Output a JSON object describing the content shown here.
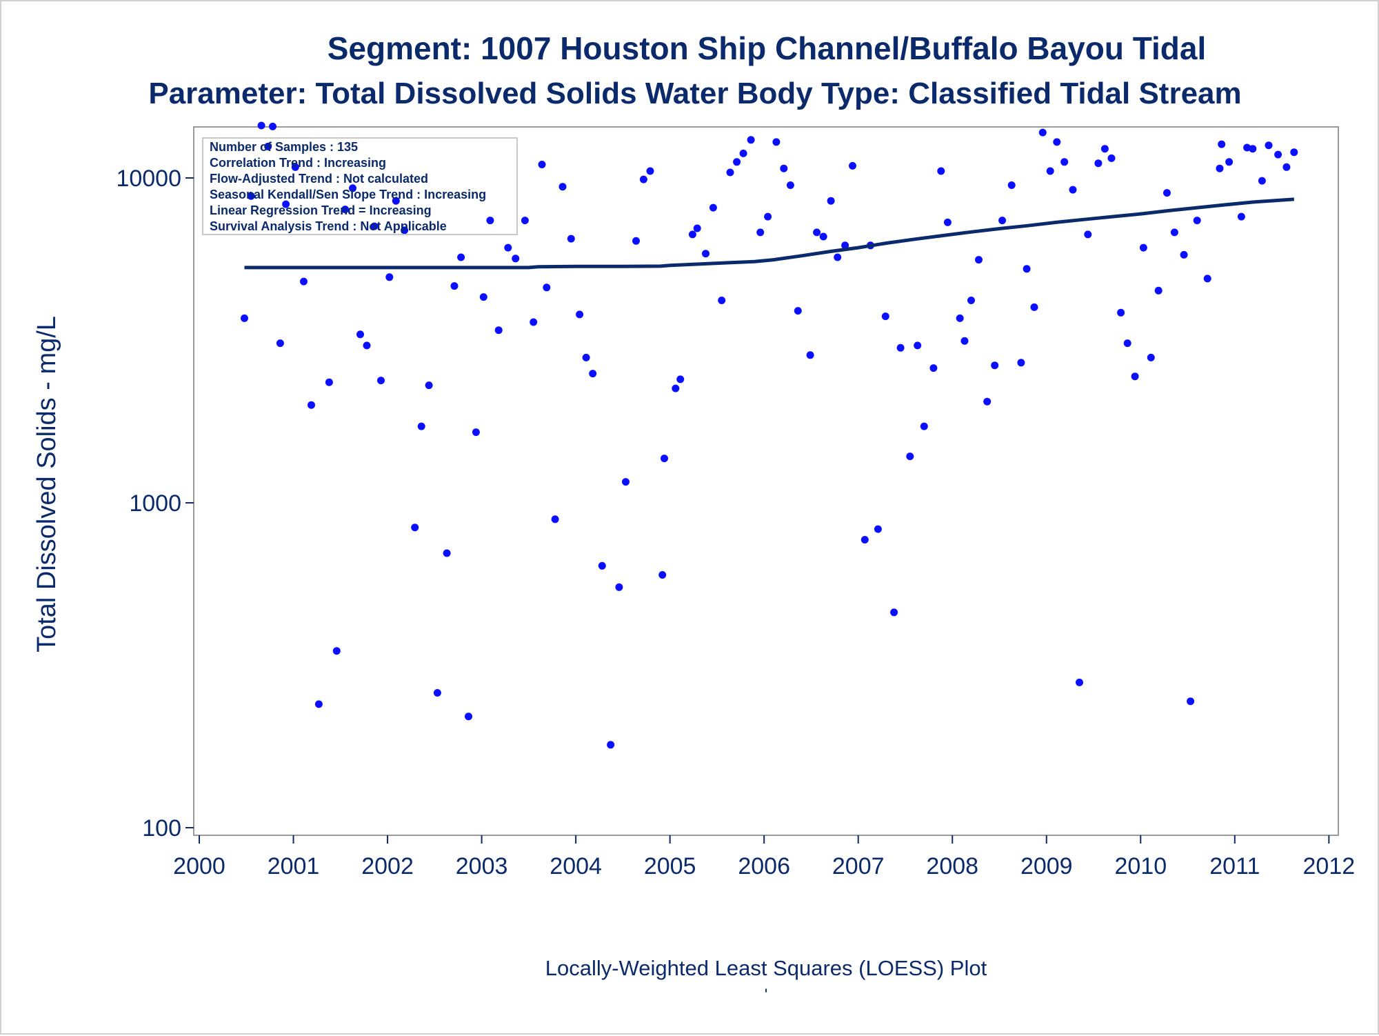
{
  "colors": {
    "text": "#0b2a6b",
    "points": "#0a10ff",
    "loess_line": "#0b2a6b",
    "frame": "#9a9a9a",
    "legend_border": "#c8c8c8"
  },
  "chart_data": {
    "type": "scatter",
    "title": "Segment: 1007  Houston Ship Channel/Buffalo Bayou Tidal",
    "subtitle": "Parameter: Total Dissolved Solids   Water Body Type: Classified Tidal Stream",
    "xlabel": "Locally-Weighted Least Squares (LOESS) Plot",
    "footnote": "'",
    "ylabel": "Total Dissolved Solids - mg/L",
    "y_scale": "log",
    "xlim": [
      2000,
      2012.1
    ],
    "ylim": [
      100,
      14500
    ],
    "x_ticks": [
      "2000",
      "2001",
      "2002",
      "2003",
      "2004",
      "2005",
      "2006",
      "2007",
      "2008",
      "2009",
      "2010",
      "2011",
      "2012"
    ],
    "y_ticks": [
      "100",
      "1000",
      "10000"
    ],
    "grid": false,
    "legend_placement": "top-left",
    "stats_box": [
      "Number of Samples : 135",
      "Correlation Trend : Increasing",
      "Flow-Adjusted Trend : Not calculated",
      "Seasonal Kendall/Sen Slope Trend : Increasing",
      "Linear Regression Trend = Increasing",
      "Survival Analysis Trend : Not Applicable"
    ],
    "points": [
      [
        2000.48,
        3700
      ],
      [
        2000.55,
        8800
      ],
      [
        2000.66,
        14500
      ],
      [
        2000.73,
        12500
      ],
      [
        2000.78,
        14400
      ],
      [
        2000.86,
        3100
      ],
      [
        2000.92,
        8300
      ],
      [
        2001.02,
        10800
      ],
      [
        2001.11,
        4800
      ],
      [
        2001.19,
        2000
      ],
      [
        2001.27,
        240
      ],
      [
        2001.38,
        2350
      ],
      [
        2001.46,
        350
      ],
      [
        2001.55,
        8000
      ],
      [
        2001.63,
        9300
      ],
      [
        2001.71,
        3300
      ],
      [
        2001.78,
        3050
      ],
      [
        2001.86,
        7100
      ],
      [
        2001.93,
        2380
      ],
      [
        2002.02,
        4950
      ],
      [
        2002.09,
        8500
      ],
      [
        2002.18,
        6900
      ],
      [
        2002.29,
        840
      ],
      [
        2002.36,
        1720
      ],
      [
        2002.44,
        2300
      ],
      [
        2002.53,
        260
      ],
      [
        2002.63,
        700
      ],
      [
        2002.71,
        4650
      ],
      [
        2002.78,
        5700
      ],
      [
        2002.86,
        220
      ],
      [
        2002.94,
        1650
      ],
      [
        2003.02,
        4300
      ],
      [
        2003.09,
        7400
      ],
      [
        2003.18,
        3400
      ],
      [
        2003.28,
        6100
      ],
      [
        2003.36,
        5650
      ],
      [
        2003.46,
        7400
      ],
      [
        2003.55,
        3600
      ],
      [
        2003.64,
        11000
      ],
      [
        2003.69,
        4600
      ],
      [
        2003.78,
        890
      ],
      [
        2003.86,
        9400
      ],
      [
        2003.95,
        6500
      ],
      [
        2004.04,
        3800
      ],
      [
        2004.11,
        2800
      ],
      [
        2004.18,
        2500
      ],
      [
        2004.28,
        640
      ],
      [
        2004.37,
        180
      ],
      [
        2004.46,
        550
      ],
      [
        2004.53,
        1160
      ],
      [
        2004.64,
        6400
      ],
      [
        2004.72,
        9900
      ],
      [
        2004.79,
        10500
      ],
      [
        2004.92,
        600
      ],
      [
        2004.94,
        1370
      ],
      [
        2005.06,
        2250
      ],
      [
        2005.11,
        2400
      ],
      [
        2005.24,
        6700
      ],
      [
        2005.29,
        7000
      ],
      [
        2005.38,
        5850
      ],
      [
        2005.46,
        8100
      ],
      [
        2005.55,
        4200
      ],
      [
        2005.64,
        10400
      ],
      [
        2005.71,
        11200
      ],
      [
        2005.78,
        11900
      ],
      [
        2005.86,
        13100
      ],
      [
        2005.96,
        6800
      ],
      [
        2006.04,
        7600
      ],
      [
        2006.13,
        12900
      ],
      [
        2006.21,
        10700
      ],
      [
        2006.28,
        9500
      ],
      [
        2006.36,
        3900
      ],
      [
        2006.49,
        2850
      ],
      [
        2006.56,
        6800
      ],
      [
        2006.63,
        6600
      ],
      [
        2006.71,
        8500
      ],
      [
        2006.78,
        5700
      ],
      [
        2006.86,
        6200
      ],
      [
        2006.94,
        10900
      ],
      [
        2007.07,
        770
      ],
      [
        2007.13,
        6200
      ],
      [
        2007.21,
        830
      ],
      [
        2007.29,
        3750
      ],
      [
        2007.38,
        460
      ],
      [
        2007.45,
        3000
      ],
      [
        2007.55,
        1390
      ],
      [
        2007.63,
        3050
      ],
      [
        2007.7,
        1720
      ],
      [
        2007.8,
        2600
      ],
      [
        2007.88,
        10500
      ],
      [
        2007.95,
        7300
      ],
      [
        2008.08,
        3700
      ],
      [
        2008.13,
        3150
      ],
      [
        2008.2,
        4200
      ],
      [
        2008.28,
        5600
      ],
      [
        2008.37,
        2050
      ],
      [
        2008.45,
        2650
      ],
      [
        2008.53,
        7400
      ],
      [
        2008.63,
        9500
      ],
      [
        2008.73,
        2700
      ],
      [
        2008.79,
        5250
      ],
      [
        2008.87,
        4000
      ],
      [
        2008.96,
        13800
      ],
      [
        2009.04,
        10500
      ],
      [
        2009.11,
        12900
      ],
      [
        2009.19,
        11200
      ],
      [
        2009.28,
        9200
      ],
      [
        2009.35,
        280
      ],
      [
        2009.44,
        6700
      ],
      [
        2009.55,
        11100
      ],
      [
        2009.62,
        12300
      ],
      [
        2009.69,
        11500
      ],
      [
        2009.79,
        3850
      ],
      [
        2009.86,
        3100
      ],
      [
        2009.94,
        2450
      ],
      [
        2010.03,
        6100
      ],
      [
        2010.11,
        2800
      ],
      [
        2010.19,
        4500
      ],
      [
        2010.28,
        9000
      ],
      [
        2010.36,
        6800
      ],
      [
        2010.46,
        5800
      ],
      [
        2010.53,
        245
      ],
      [
        2010.6,
        7400
      ],
      [
        2010.71,
        4900
      ],
      [
        2010.84,
        10700
      ],
      [
        2010.86,
        12700
      ],
      [
        2010.94,
        11200
      ],
      [
        2011.07,
        7600
      ],
      [
        2011.13,
        12400
      ],
      [
        2011.19,
        12300
      ],
      [
        2011.29,
        9800
      ],
      [
        2011.36,
        12600
      ],
      [
        2011.46,
        11800
      ],
      [
        2011.55,
        10800
      ],
      [
        2011.63,
        12000
      ]
    ],
    "loess_line": [
      [
        2000.48,
        5300
      ],
      [
        2001.0,
        5300
      ],
      [
        2001.5,
        5300
      ],
      [
        2002.0,
        5300
      ],
      [
        2002.5,
        5300
      ],
      [
        2003.0,
        5300
      ],
      [
        2003.5,
        5300
      ],
      [
        2003.6,
        5330
      ],
      [
        2004.0,
        5340
      ],
      [
        2004.5,
        5340
      ],
      [
        2004.9,
        5350
      ],
      [
        2005.0,
        5380
      ],
      [
        2005.3,
        5430
      ],
      [
        2005.6,
        5480
      ],
      [
        2005.9,
        5530
      ],
      [
        2006.1,
        5600
      ],
      [
        2006.4,
        5760
      ],
      [
        2006.7,
        5940
      ],
      [
        2007.0,
        6100
      ],
      [
        2007.3,
        6300
      ],
      [
        2007.6,
        6480
      ],
      [
        2007.9,
        6650
      ],
      [
        2008.2,
        6820
      ],
      [
        2008.5,
        6980
      ],
      [
        2008.8,
        7130
      ],
      [
        2009.1,
        7300
      ],
      [
        2009.4,
        7450
      ],
      [
        2009.7,
        7600
      ],
      [
        2010.0,
        7750
      ],
      [
        2010.3,
        7930
      ],
      [
        2010.6,
        8100
      ],
      [
        2010.9,
        8270
      ],
      [
        2011.2,
        8430
      ],
      [
        2011.63,
        8600
      ]
    ]
  }
}
